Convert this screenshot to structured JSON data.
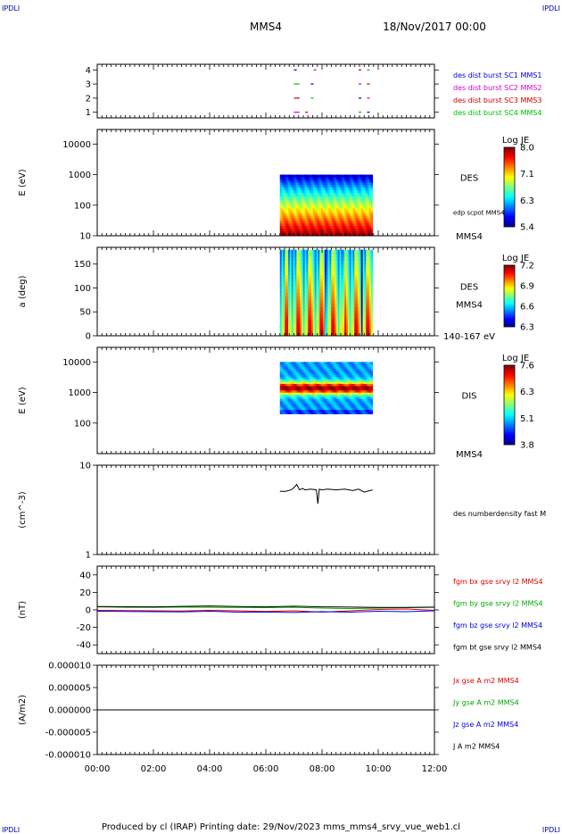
{
  "header": {
    "corner_tl": "IPDLI",
    "corner_tr": "IPDLI",
    "corner_bl": "IPDLI",
    "corner_br": "IPDLI",
    "spacecraft": "MMS4",
    "date": "18/Nov/2017 00:00"
  },
  "footer": {
    "text": "Produced by cl (IRAP)   Printing date: 29/Nov/2023   mms_mms4_srvy_vue_web1.cl"
  },
  "colors": {
    "c1": "#0000cc",
    "c2": "#cc00cc",
    "c3": "#cc0000",
    "c4": "#00bb00",
    "bx": "#dd0000",
    "by": "#00aa00",
    "bz": "#0000dd",
    "bt": "#000000"
  },
  "chart_data": [
    {
      "id": "burst",
      "type": "scatter",
      "ylim": [
        0.6,
        4.4
      ],
      "yticks": [
        "1",
        "2",
        "3",
        "4"
      ],
      "legend": [
        "des dist burst SC1 MMS1",
        "des dist burst SC2 MMS2",
        "des dist burst SC3 MMS3",
        "des dist burst SC4 MMS4"
      ],
      "legend_colors": [
        "#0000cc",
        "#cc00cc",
        "#cc0000",
        "#00bb00"
      ],
      "segments": [
        {
          "level": 1,
          "x": [
            [
              7.0,
              7.2
            ],
            [
              7.4,
              7.5
            ],
            [
              9.3,
              9.4
            ],
            [
              9.6,
              9.7
            ]
          ]
        },
        {
          "level": 2,
          "x": [
            [
              7.0,
              7.2
            ],
            [
              7.6,
              7.7
            ],
            [
              9.3,
              9.4
            ],
            [
              9.6,
              9.7
            ]
          ]
        },
        {
          "level": 3,
          "x": [
            [
              7.0,
              7.2
            ],
            [
              7.6,
              7.7
            ],
            [
              9.3,
              9.4
            ],
            [
              9.6,
              9.7
            ]
          ]
        },
        {
          "level": 4,
          "x": [
            [
              7.0,
              7.1
            ],
            [
              7.7,
              7.8
            ],
            [
              9.3,
              9.4
            ],
            [
              9.6,
              9.7
            ]
          ]
        }
      ]
    },
    {
      "id": "des_energy",
      "type": "heatmap",
      "ylabel": "E (eV)",
      "ylog": true,
      "ylim": [
        10,
        30000
      ],
      "yticks": [
        "10",
        "100",
        "1000",
        "10000"
      ],
      "xrange": [
        6.5,
        9.8
      ],
      "yrange": [
        10,
        1000
      ],
      "colorbar": {
        "title": "Log JE",
        "ticks": [
          "8.0",
          "7.1",
          "6.3",
          "5.4"
        ],
        "range": [
          5.4,
          8.0
        ]
      },
      "label": "DES",
      "note": "edp scpot MMS4",
      "sub": "MMS4"
    },
    {
      "id": "des_pitch",
      "type": "heatmap",
      "ylabel": "a (deg)",
      "ylim": [
        0,
        185
      ],
      "yticks": [
        "0",
        "50",
        "100",
        "150"
      ],
      "xrange": [
        6.5,
        9.8
      ],
      "yrange": [
        0,
        180
      ],
      "colorbar": {
        "title": "Log JE",
        "ticks": [
          "7.2",
          "6.9",
          "6.6",
          "6.3"
        ],
        "range": [
          6.3,
          7.2
        ]
      },
      "label": "DES",
      "sub": "MMS4",
      "band": "140-167 eV"
    },
    {
      "id": "dis_energy",
      "type": "heatmap",
      "ylabel": "E (eV)",
      "ylog": true,
      "ylim": [
        10,
        30000
      ],
      "yticks": [
        "100",
        "1000",
        "10000"
      ],
      "xrange": [
        6.5,
        9.8
      ],
      "yrange": [
        200,
        10000
      ],
      "colorbar": {
        "title": "Log JE",
        "ticks": [
          "7.6",
          "6.3",
          "5.1",
          "3.8"
        ],
        "range": [
          3.8,
          7.6
        ]
      },
      "label": "DIS",
      "sub": "MMS4"
    },
    {
      "id": "density",
      "type": "line",
      "ylabel": "(cm^-3)",
      "ylog": true,
      "ylim": [
        1,
        10
      ],
      "yticks": [
        "1",
        "10"
      ],
      "legend": [
        "des numberdensity fast M"
      ],
      "x": [
        6.5,
        6.7,
        6.9,
        7.0,
        7.1,
        7.2,
        7.3,
        7.4,
        7.6,
        7.8,
        7.85,
        7.9,
        8.0,
        8.2,
        8.5,
        8.8,
        9.1,
        9.3,
        9.5,
        9.8
      ],
      "y": [
        5.1,
        5.1,
        5.3,
        5.6,
        6.1,
        5.3,
        5.5,
        5.3,
        5.4,
        5.3,
        3.7,
        5.4,
        5.3,
        5.4,
        5.3,
        5.4,
        5.2,
        5.4,
        5.0,
        5.3
      ]
    },
    {
      "id": "fgm",
      "type": "line",
      "ylabel": "(nT)",
      "ylim": [
        -50,
        50
      ],
      "yticks": [
        "-40",
        "-20",
        "0",
        "20",
        "40"
      ],
      "x": [
        0,
        1,
        2,
        3,
        4,
        5,
        6,
        7,
        8,
        9,
        10,
        11,
        12
      ],
      "series": [
        {
          "name": "fgm bx gse srvy l2 MMS4",
          "color": "#dd0000",
          "values": [
            -0.5,
            -0.8,
            -1.0,
            -1.2,
            -0.5,
            -1.0,
            -1.8,
            -1.0,
            -2.5,
            -1.0,
            0.5,
            1.0,
            -0.5
          ]
        },
        {
          "name": "fgm by gse srvy l2 MMS4",
          "color": "#00aa00",
          "values": [
            3.5,
            3.0,
            2.8,
            3.2,
            3.0,
            2.8,
            2.5,
            3.0,
            2.0,
            1.5,
            2.0,
            2.5,
            3.0
          ]
        },
        {
          "name": "fgm bz gse srvy l2 MMS4",
          "color": "#0000dd",
          "values": [
            -1.5,
            -1.8,
            -2.0,
            -2.2,
            -1.5,
            -2.5,
            -2.5,
            -3.0,
            -2.0,
            -2.5,
            -1.5,
            -2.0,
            -1.0
          ]
        },
        {
          "name": "fgm bt gse srvy l2 MMS4",
          "color": "#000000",
          "values": [
            3.8,
            3.6,
            3.5,
            4.0,
            4.5,
            3.8,
            3.5,
            4.2,
            3.5,
            3.2,
            2.8,
            2.9,
            3.2
          ]
        }
      ]
    },
    {
      "id": "current",
      "type": "line",
      "ylabel": "(A/m2)",
      "ylim": [
        -1e-05,
        1e-05
      ],
      "yticks": [
        "-0.000010",
        "-0.000005",
        "0.000000",
        "0.000005",
        "0.000010"
      ],
      "x": [
        0,
        12
      ],
      "series": [
        {
          "name": "Jx gse A m2 MMS4",
          "color": "#dd0000",
          "values": [
            0,
            0
          ]
        },
        {
          "name": "Jy gse A m2 MMS4",
          "color": "#00aa00",
          "values": [
            0,
            0
          ]
        },
        {
          "name": "Jz gse A m2 MMS4",
          "color": "#0000dd",
          "values": [
            0,
            0
          ]
        },
        {
          "name": "J A m2 MMS4",
          "color": "#000000",
          "values": [
            0,
            0
          ]
        }
      ]
    }
  ],
  "xaxis": {
    "range": [
      0,
      12
    ],
    "ticks": [
      "00:00",
      "02:00",
      "04:00",
      "06:00",
      "08:00",
      "10:00",
      "12:00"
    ]
  }
}
